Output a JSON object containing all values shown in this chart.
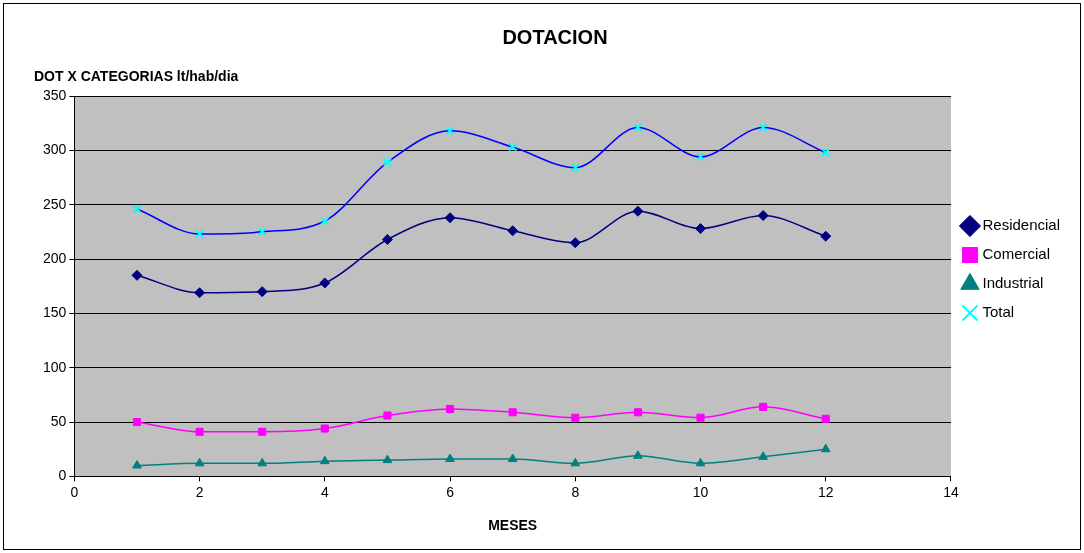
{
  "chart_data": {
    "type": "line",
    "title": "DOTACION",
    "ylabel": "DOT X CATEGORIAS lt/hab/dia",
    "xlabel": "MESES",
    "x": [
      1,
      2,
      3,
      4,
      5,
      6,
      7,
      8,
      9,
      10,
      11,
      12
    ],
    "series": [
      {
        "name": "Residencial",
        "color": "#000080",
        "marker": "diamond",
        "values": [
          185,
          169,
          170,
          178,
          218,
          238,
          226,
          215,
          244,
          228,
          240,
          221
        ]
      },
      {
        "name": "Comercial",
        "color": "#ff00ff",
        "marker": "square",
        "values": [
          50,
          41,
          41,
          44,
          56,
          62,
          59,
          54,
          59,
          54,
          64,
          53
        ]
      },
      {
        "name": "Industrial",
        "color": "#008080",
        "marker": "triangle",
        "values": [
          10,
          12,
          12,
          14,
          15,
          16,
          16,
          12,
          19,
          12,
          18,
          25
        ]
      },
      {
        "name": "Total",
        "color": "#0000ff",
        "marker": "cross",
        "values": [
          246,
          223,
          225,
          235,
          289,
          318,
          303,
          284,
          321,
          294,
          321,
          298
        ]
      }
    ],
    "xlim": [
      0,
      14
    ],
    "xticks": [
      0,
      2,
      4,
      6,
      8,
      10,
      12,
      14
    ],
    "ylim": [
      0,
      350
    ],
    "yticks": [
      0,
      50,
      100,
      150,
      200,
      250,
      300,
      350
    ],
    "grid": "y",
    "legend": "right",
    "line_style": "solid"
  }
}
